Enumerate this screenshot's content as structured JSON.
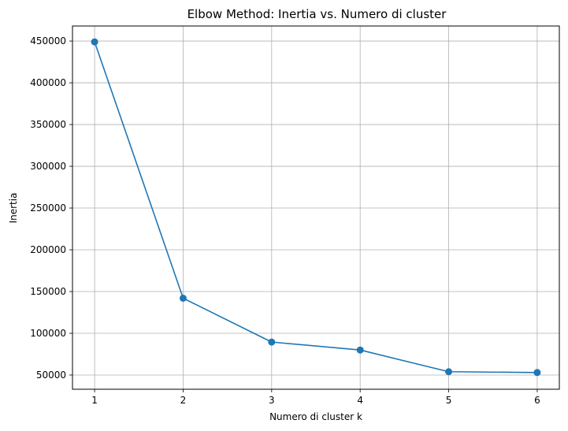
{
  "chart_data": {
    "type": "line",
    "title": "Elbow Method: Inertia vs. Numero di cluster",
    "xlabel": "Numero di cluster k",
    "ylabel": "Inertia",
    "x": [
      1,
      2,
      3,
      4,
      5,
      6
    ],
    "series": [
      {
        "values": [
          449000,
          142000,
          89500,
          80000,
          54000,
          53000
        ],
        "color": "#1f77b4",
        "marker": "circle"
      }
    ],
    "x_ticks": [
      "1",
      "2",
      "3",
      "4",
      "5",
      "6"
    ],
    "y_ticks": [
      "50000",
      "100000",
      "150000",
      "200000",
      "250000",
      "300000",
      "350000",
      "400000",
      "450000"
    ],
    "xlim": [
      0.75,
      6.25
    ],
    "ylim": [
      33000,
      468000
    ],
    "grid": true,
    "legend": false
  }
}
